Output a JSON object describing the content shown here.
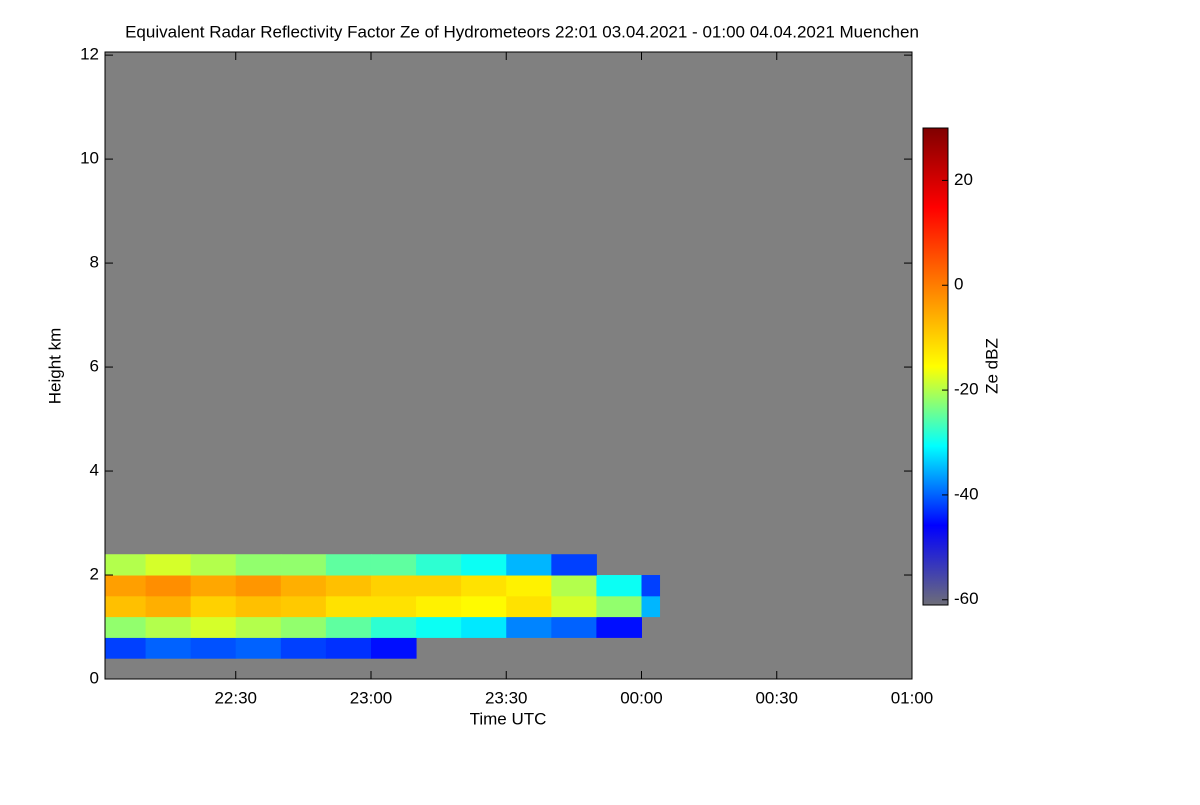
{
  "chart_data": {
    "type": "heatmap",
    "title": "Equivalent Radar Reflectivity Factor Ze of Hydrometeors   22:01 03.04.2021 - 01:00 04.04.2021 Muenchen",
    "xlabel": "Time UTC",
    "ylabel": "Height km",
    "colorbar_label": "Ze dBZ",
    "background": "#808080",
    "xlim": [
      22.0167,
      25
    ],
    "xticks": [
      {
        "value": 22.5,
        "label": "22:30"
      },
      {
        "value": 23,
        "label": "23:00"
      },
      {
        "value": 23.5,
        "label": "23:30"
      },
      {
        "value": 24,
        "label": "00:00"
      },
      {
        "value": 24.5,
        "label": "00:30"
      },
      {
        "value": 25,
        "label": "01:00"
      }
    ],
    "ylim": [
      0,
      12.06
    ],
    "yticks": [
      0,
      2,
      4,
      6,
      8,
      10,
      12
    ],
    "zlim": [
      -61,
      30
    ],
    "zticks": [
      -60,
      -40,
      -20,
      0,
      20
    ],
    "colorscale": [
      "#6e6e78",
      "#0000ff",
      "#00ffff",
      "#ffff00",
      "#ff8000",
      "#ff0000",
      "#800000"
    ],
    "x_edges": [
      22.0167,
      22.1667,
      22.3333,
      22.5,
      22.6667,
      22.8333,
      23.0,
      23.1667,
      23.3333,
      23.5,
      23.6667,
      23.8333,
      24.0,
      24.0667
    ],
    "y_edges": [
      0.4,
      0.8,
      1.2,
      1.6,
      2.0,
      2.4
    ],
    "z": [
      [
        -42,
        -40,
        -41,
        -40,
        -42,
        -43,
        -45,
        null,
        null,
        null,
        null,
        null,
        null
      ],
      [
        -22,
        -20,
        -18,
        -20,
        -22,
        -25,
        -28,
        -30,
        -32,
        -38,
        -40,
        -45,
        null
      ],
      [
        -8,
        -6,
        -10,
        -8,
        -9,
        -12,
        -12,
        -14,
        -15,
        -12,
        -18,
        -22,
        -35
      ],
      [
        -4,
        -2,
        -5,
        -3,
        -6,
        -8,
        -10,
        -10,
        -12,
        -14,
        -20,
        -30,
        -42
      ],
      [
        -20,
        -18,
        -20,
        -22,
        -22,
        -25,
        -25,
        -28,
        -30,
        -35,
        -42,
        null,
        null
      ]
    ]
  }
}
